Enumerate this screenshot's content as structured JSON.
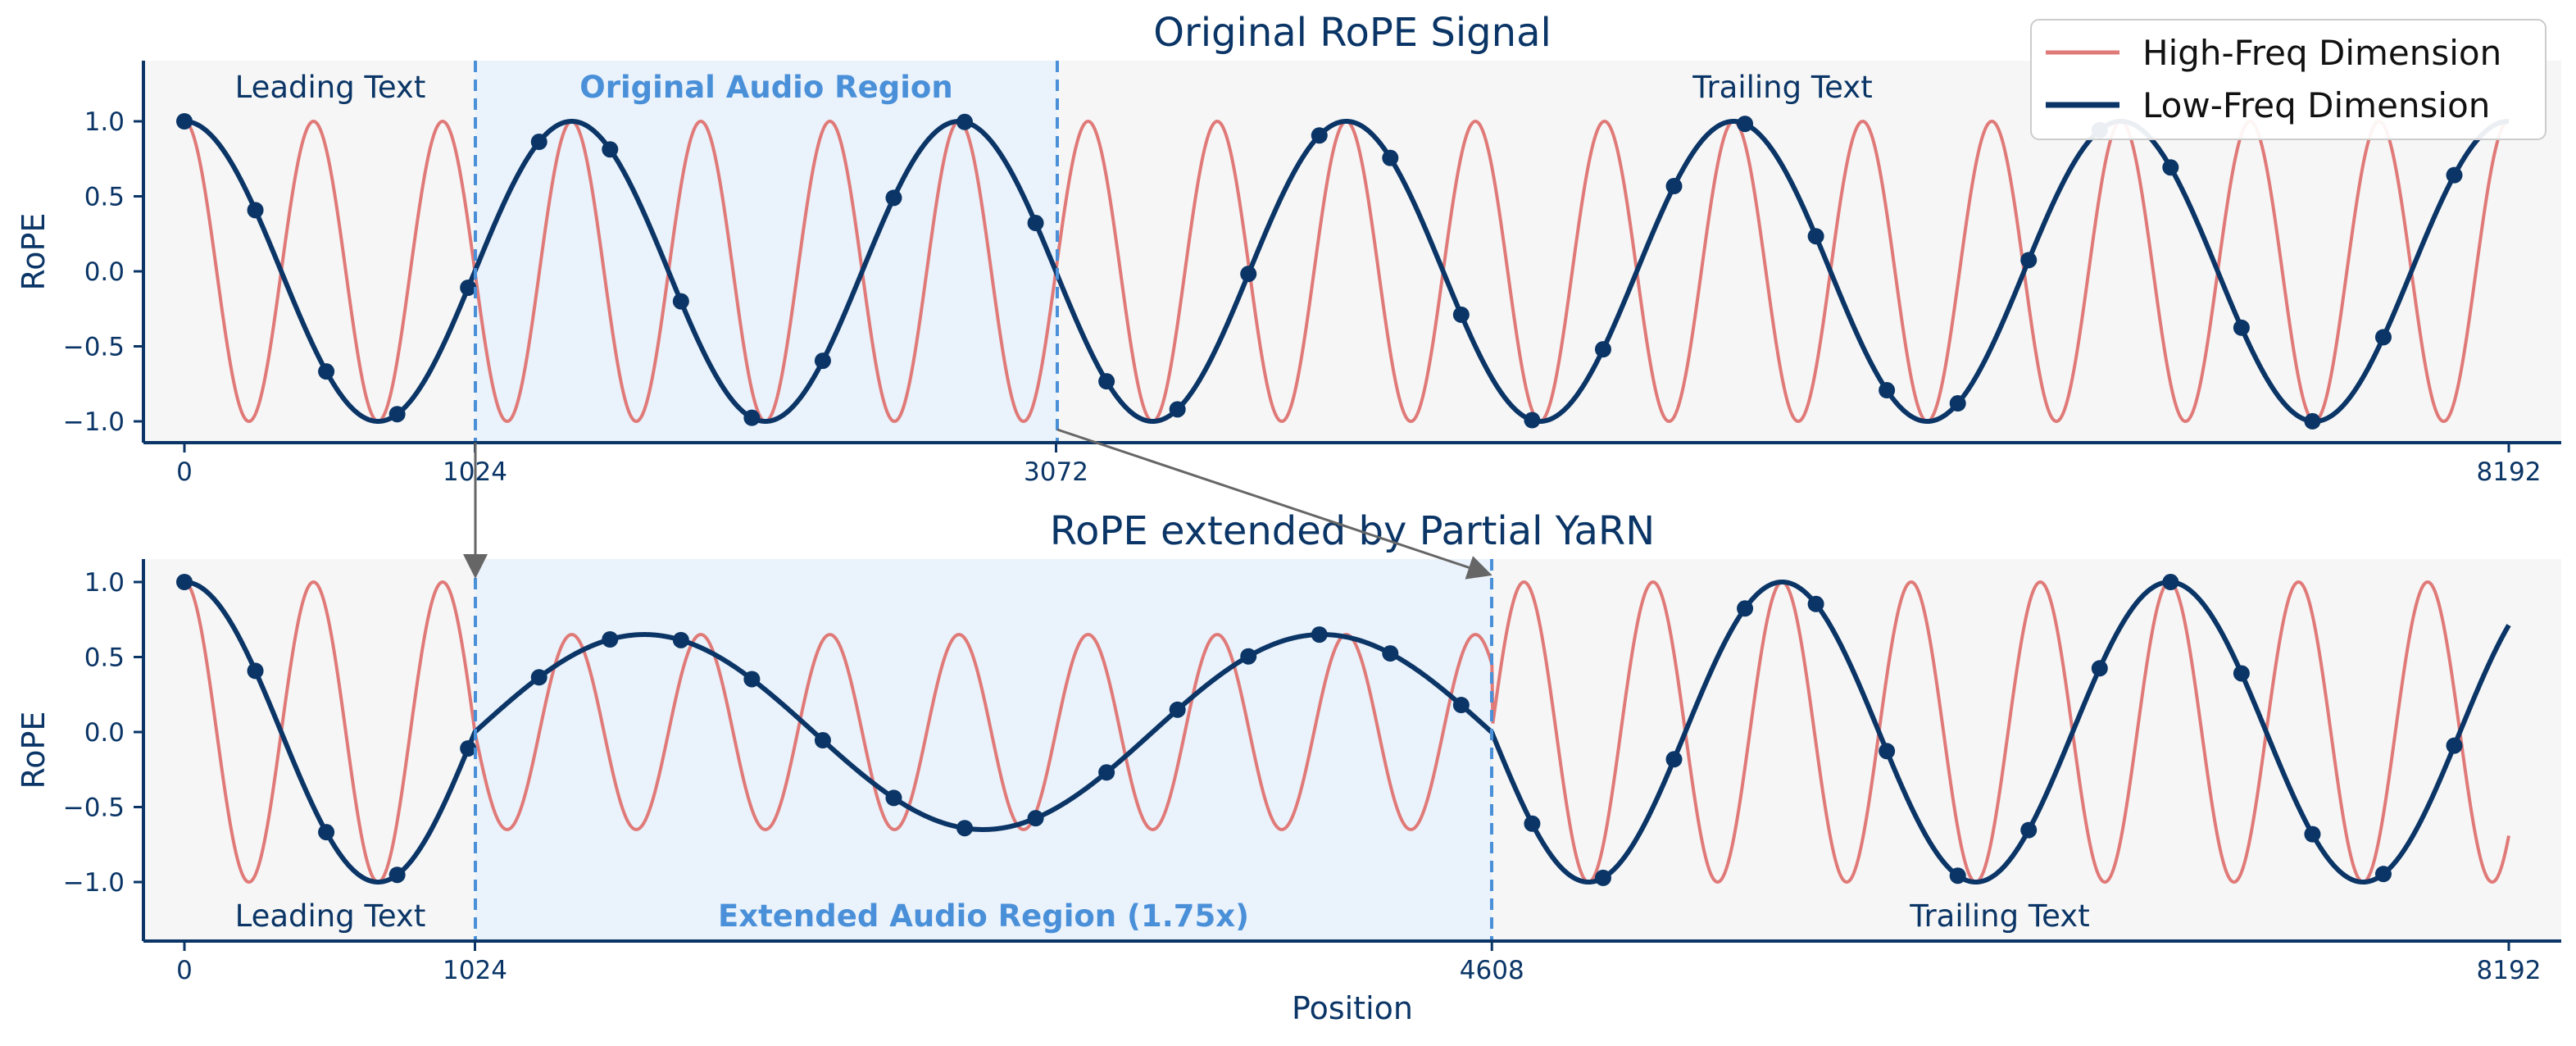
{
  "colors": {
    "high_freq": "#E07A78",
    "low_freq": "#0A3566",
    "dashed_line": "#4A90D9",
    "audio_region_fill": "#EAF2FB",
    "plot_bg": "#F6F6F6",
    "axis": "#0A3566",
    "arrow": "#666666",
    "text_dark": "#0A3566",
    "text_accent": "#4A90D9"
  },
  "legend": {
    "entries": [
      "High-Freq Dimension",
      "Low-Freq Dimension"
    ],
    "position": "top-right"
  },
  "chart_data": [
    {
      "type": "line",
      "title": "Original RoPE Signal",
      "xlabel": "",
      "ylabel": "RoPE",
      "xlim": [
        0,
        8192
      ],
      "ylim": [
        -1.0,
        1.0
      ],
      "xticks": [
        0,
        1024,
        3072,
        8192
      ],
      "yticks": [
        1.0,
        0.5,
        0.0,
        -0.5,
        -1.0
      ],
      "ytick_labels": [
        "1.0",
        "0.5",
        "0.0",
        "−0.5",
        "−1.0"
      ],
      "regions": [
        {
          "label": "Leading Text",
          "start": 0,
          "end": 1024,
          "highlight": false
        },
        {
          "label": "Original Audio Region",
          "start": 1024,
          "end": 3072,
          "highlight": true
        },
        {
          "label": "Trailing Text",
          "start": 3072,
          "end": 8192,
          "highlight": false
        }
      ],
      "series": [
        {
          "name": "High-Freq Dimension",
          "function": "cos",
          "period": 455,
          "amplitude": 1.0
        },
        {
          "name": "Low-Freq Dimension",
          "function": "cos",
          "period": 1365,
          "amplitude": 1.0,
          "marker_spacing": 250
        }
      ]
    },
    {
      "type": "line",
      "title": "RoPE extended by Partial YaRN",
      "xlabel": "Position",
      "ylabel": "RoPE",
      "xlim": [
        0,
        8192
      ],
      "ylim": [
        -1.0,
        1.0
      ],
      "xticks": [
        0,
        1024,
        4608,
        8192
      ],
      "yticks": [
        1.0,
        0.5,
        0.0,
        -0.5,
        -1.0
      ],
      "ytick_labels": [
        "1.0",
        "0.5",
        "0.0",
        "−0.5",
        "−1.0"
      ],
      "regions": [
        {
          "label": "Leading Text",
          "start": 0,
          "end": 1024,
          "highlight": false
        },
        {
          "label": "Extended Audio Region (1.75x)",
          "start": 1024,
          "end": 4608,
          "highlight": true,
          "stretch": 1.75
        },
        {
          "label": "Trailing Text",
          "start": 4608,
          "end": 8192,
          "highlight": false
        }
      ],
      "series": [
        {
          "name": "High-Freq Dimension",
          "function": "cos",
          "period": 455,
          "amplitude_in_region": 0.65
        },
        {
          "name": "Low-Freq Dimension",
          "function": "cos",
          "period": 1365,
          "amplitude_in_region": 0.65,
          "marker_spacing": 250
        }
      ]
    }
  ]
}
